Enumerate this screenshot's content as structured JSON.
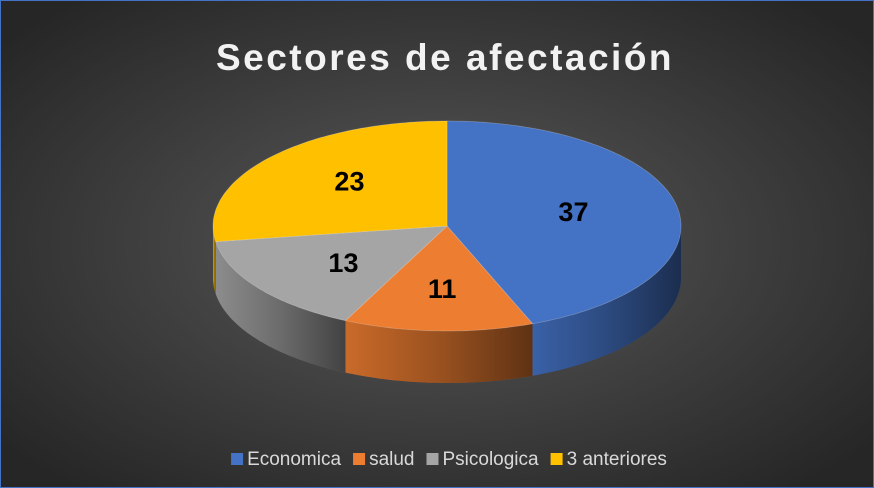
{
  "chart_data": {
    "type": "pie",
    "title": "Sectores de afectación",
    "categories": [
      "Economica",
      "salud",
      "Psicologica",
      "3 anteriores"
    ],
    "values": [
      37,
      11,
      13,
      23
    ],
    "colors": [
      "#4472c4",
      "#ed7d31",
      "#a5a5a5",
      "#ffc000"
    ],
    "legend": "bottom"
  }
}
